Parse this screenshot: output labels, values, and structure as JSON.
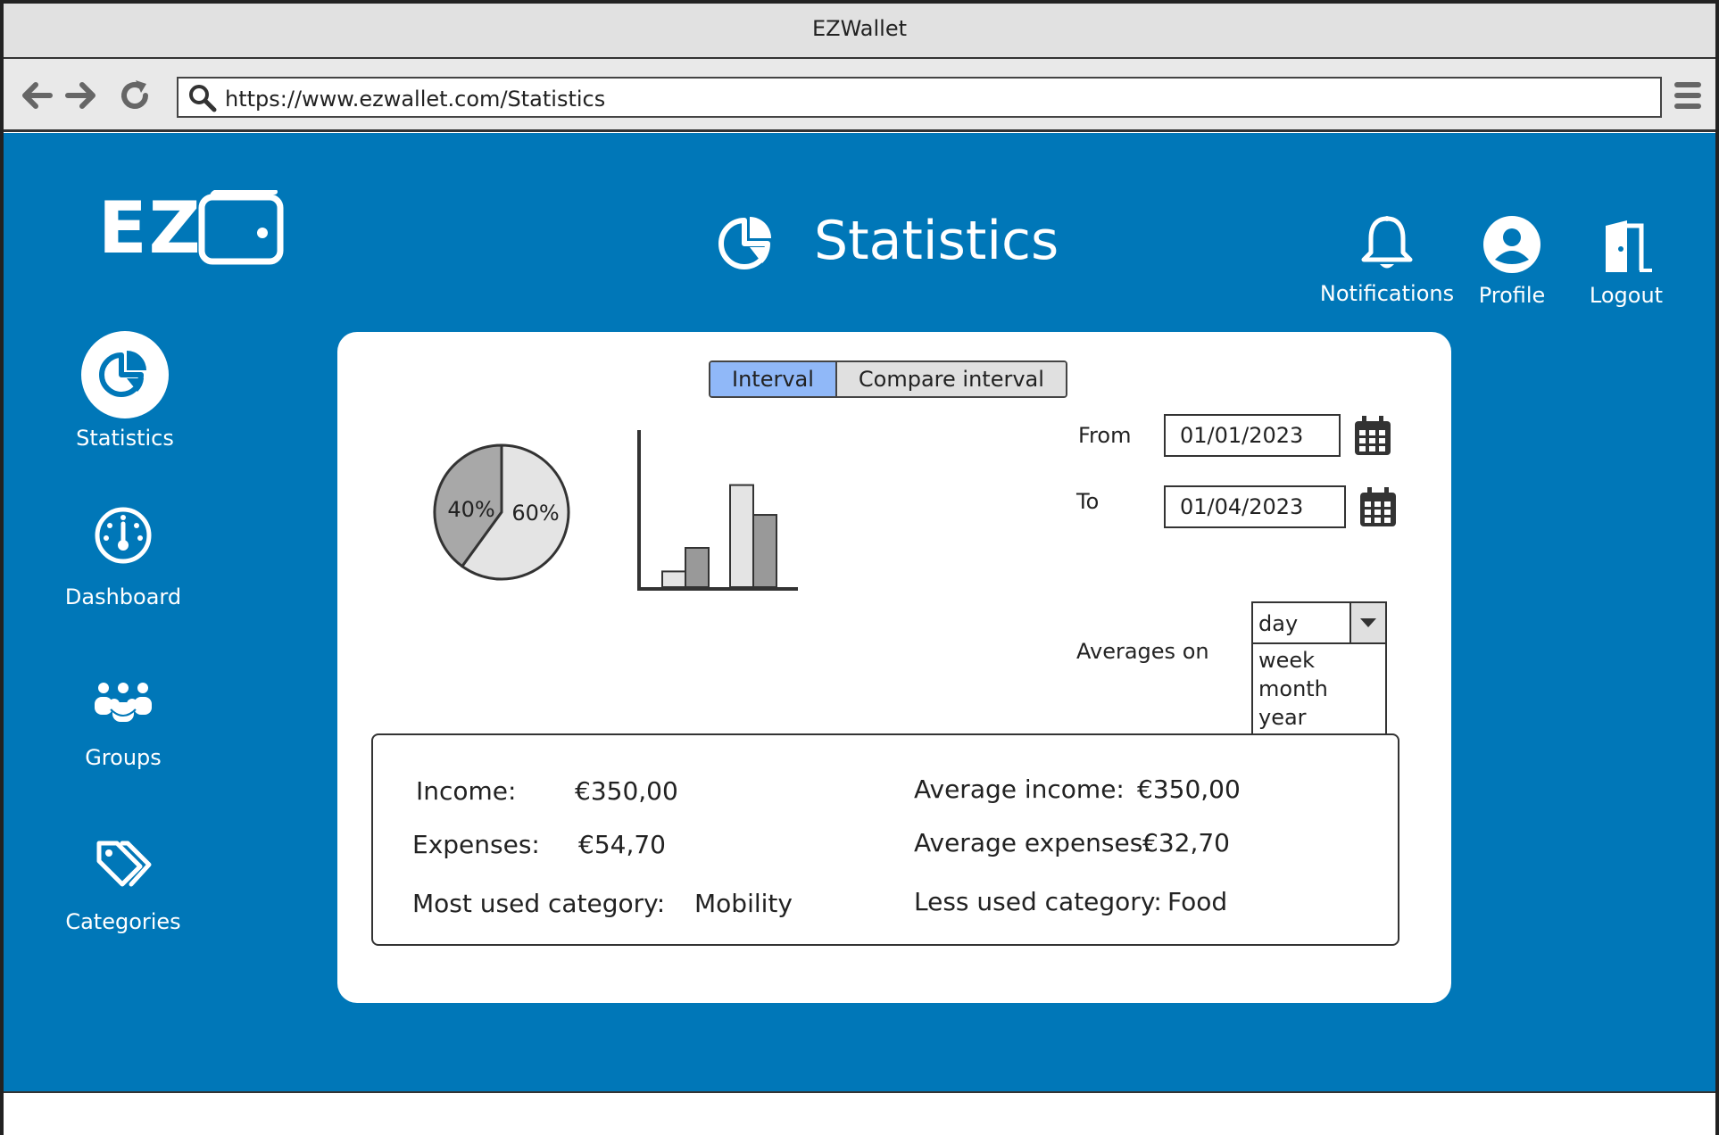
{
  "window": {
    "title": "EZWallet"
  },
  "browser": {
    "url": "https://www.ezwallet.com/Statistics"
  },
  "logo": {
    "text": "EZ"
  },
  "header": {
    "title": "Statistics"
  },
  "top_actions": {
    "notifications": "Notifications",
    "profile": "Profile",
    "logout": "Logout"
  },
  "sidebar": {
    "items": [
      {
        "label": "Statistics",
        "active": true
      },
      {
        "label": "Dashboard"
      },
      {
        "label": "Groups"
      },
      {
        "label": "Categories"
      }
    ]
  },
  "tabs": {
    "interval": "Interval",
    "compare": "Compare interval"
  },
  "chart_data": [
    {
      "type": "pie",
      "values": [
        40,
        60
      ],
      "labels": [
        "40%",
        "60%"
      ],
      "colors": [
        "#a8a8a8",
        "#e4e4e4"
      ]
    },
    {
      "type": "bar",
      "series": [
        {
          "values": [
            0.1,
            0.25,
            0.65,
            0.46
          ],
          "colors": [
            "#e4e4e4",
            "#999999",
            "#e4e4e4",
            "#999999"
          ]
        }
      ]
    }
  ],
  "filters": {
    "from_label": "From",
    "from_value": "01/01/2023",
    "to_label": "To",
    "to_value": "01/04/2023",
    "averages_label": "Averages on",
    "averages_selected": "day",
    "averages_options": [
      "week",
      "month",
      "year"
    ]
  },
  "summary": {
    "income_label": "Income:",
    "income_value": "€350,00",
    "expenses_label": "Expenses:",
    "expenses_value": "€54,70",
    "most_used_label": "Most used category:",
    "most_used_value": "Mobility",
    "avg_income_label": "Average income:",
    "avg_income_value": "€350,00",
    "avg_expenses_label": "Average expenses:",
    "avg_expenses_value": "€32,70",
    "less_used_label": "Less used category:",
    "less_used_value": "Food"
  },
  "colors": {
    "brand_blue": "#0077b8",
    "active_tab": "#90b8f8"
  }
}
